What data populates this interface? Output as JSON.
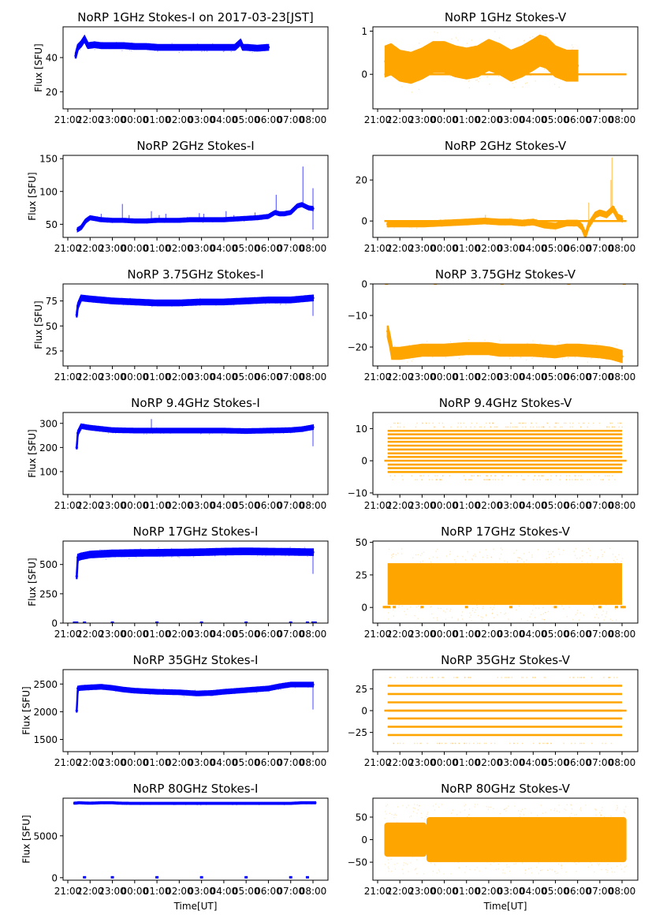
{
  "figure": {
    "xlabel": "Time[UT]",
    "ylabel": "Flux [SFU]",
    "colors": {
      "stokes_i": "#0000ff",
      "stokes_v": "#ffa500"
    }
  },
  "chart_data": [
    {
      "id": "i1",
      "type": "scatter",
      "column": "left",
      "row": 0,
      "title": "NoRP 1GHz Stokes-I on 2017-03-23[JST]",
      "xlabel": "",
      "ylabel": "Flux [SFU]",
      "ylim": [
        10,
        58
      ],
      "yticks": [
        20,
        40
      ],
      "xticks": [
        "21:00",
        "22:00",
        "23:00",
        "00:00",
        "01:00",
        "02:00",
        "03:00",
        "04:00",
        "05:00",
        "06:00",
        "07:00",
        "08:00"
      ],
      "color": "#0000ff",
      "series": [
        {
          "name": "Stokes-I",
          "x": [
            21.35,
            21.45,
            21.6,
            21.75,
            21.9,
            22.2,
            22.5,
            23.0,
            23.5,
            24.0,
            24.5,
            25.0,
            25.5,
            26.0,
            26.5,
            27.0,
            27.5,
            28.0,
            28.5,
            28.75,
            28.85,
            29.0,
            29.5,
            30.0
          ],
          "y": [
            41,
            46,
            48,
            51,
            47,
            47.5,
            47,
            47,
            47,
            46.5,
            46.5,
            46,
            46,
            46,
            46,
            46,
            46,
            46,
            46,
            49,
            46,
            46,
            45.5,
            46
          ],
          "spread": 1.5
        }
      ],
      "zero_points": []
    },
    {
      "id": "v1",
      "type": "scatter",
      "column": "right",
      "row": 0,
      "title": "NoRP 1GHz Stokes-V",
      "xlabel": "",
      "ylabel": "",
      "ylim": [
        -0.8,
        1.1
      ],
      "yticks": [
        0,
        1
      ],
      "xticks": [
        "21:00",
        "22:00",
        "23:00",
        "00:00",
        "01:00",
        "02:00",
        "03:00",
        "04:00",
        "05:00",
        "06:00",
        "07:00",
        "08:00"
      ],
      "color": "#ffa500",
      "series": [
        {
          "name": "Stokes-V",
          "x": [
            21.35,
            21.6,
            22.0,
            22.5,
            23.0,
            23.5,
            24.0,
            24.5,
            25.0,
            25.5,
            26.0,
            26.5,
            27.0,
            27.5,
            28.0,
            28.3,
            28.6,
            29.0,
            29.5,
            30.0
          ],
          "y": [
            0.3,
            0.35,
            0.2,
            0.15,
            0.25,
            0.4,
            0.4,
            0.3,
            0.25,
            0.3,
            0.45,
            0.35,
            0.2,
            0.3,
            0.45,
            0.55,
            0.5,
            0.3,
            0.2,
            0.2
          ],
          "spread": 0.35
        }
      ],
      "zero_line": [
        21.3,
        32.2
      ]
    },
    {
      "id": "i2",
      "type": "scatter",
      "column": "left",
      "row": 1,
      "title": "NoRP 2GHz Stokes-I",
      "xlabel": "",
      "ylabel": "Flux [SFU]",
      "ylim": [
        30,
        155
      ],
      "yticks": [
        50,
        100,
        150
      ],
      "xticks": [
        "21:00",
        "22:00",
        "23:00",
        "00:00",
        "01:00",
        "02:00",
        "03:00",
        "04:00",
        "05:00",
        "06:00",
        "07:00",
        "08:00"
      ],
      "color": "#0000ff",
      "series": [
        {
          "name": "Stokes-I",
          "x": [
            21.45,
            21.6,
            21.8,
            22.0,
            22.5,
            23.0,
            23.5,
            24.0,
            24.5,
            25.0,
            25.5,
            26.0,
            26.5,
            27.0,
            27.5,
            28.0,
            28.5,
            29.0,
            29.5,
            30.0,
            30.3,
            30.5,
            30.7,
            31.0,
            31.3,
            31.5,
            31.8,
            32.0
          ],
          "y": [
            42,
            45,
            55,
            60,
            57,
            56,
            56,
            55,
            55,
            56,
            56,
            56,
            57,
            57,
            57,
            57,
            58,
            59,
            60,
            62,
            68,
            66,
            66,
            68,
            78,
            80,
            75,
            74
          ],
          "spread": 2.5
        }
      ],
      "spikes": [
        [
          22.5,
          66
        ],
        [
          23.45,
          81
        ],
        [
          23.75,
          64
        ],
        [
          24.75,
          70
        ],
        [
          25.1,
          64
        ],
        [
          25.4,
          66
        ],
        [
          26.9,
          67
        ],
        [
          27.1,
          66
        ],
        [
          28.1,
          70
        ],
        [
          28.45,
          64
        ],
        [
          29.4,
          68
        ],
        [
          30.35,
          95
        ],
        [
          31.55,
          138
        ],
        [
          32.0,
          105
        ],
        [
          32.0,
          42
        ]
      ]
    },
    {
      "id": "v2",
      "type": "scatter",
      "column": "right",
      "row": 1,
      "title": "NoRP 2GHz Stokes-V",
      "xlabel": "",
      "ylabel": "",
      "ylim": [
        -8,
        32
      ],
      "yticks": [
        0,
        20
      ],
      "xticks": [
        "21:00",
        "22:00",
        "23:00",
        "00:00",
        "01:00",
        "02:00",
        "03:00",
        "04:00",
        "05:00",
        "06:00",
        "07:00",
        "08:00"
      ],
      "color": "#ffa500",
      "series": [
        {
          "name": "Stokes-V",
          "x": [
            21.45,
            22.0,
            23.0,
            24.0,
            25.0,
            25.8,
            26.5,
            27.0,
            27.5,
            28.0,
            28.5,
            29.0,
            29.5,
            30.0,
            30.2,
            30.35,
            30.5,
            30.8,
            31.0,
            31.3,
            31.5,
            31.6,
            31.8,
            32.0
          ],
          "y": [
            -1.5,
            -1.5,
            -1.5,
            -1,
            -0.5,
            0,
            -0.5,
            -0.5,
            -1,
            -0.5,
            -2,
            -2.5,
            -1,
            -1,
            -3,
            -7,
            -2,
            3,
            4,
            3,
            5,
            6,
            2,
            1
          ],
          "spread": 1.2
        }
      ],
      "zero_line": [
        21.3,
        32.2
      ],
      "spikes": [
        [
          25.85,
          3
        ],
        [
          31.55,
          31
        ],
        [
          31.5,
          20
        ],
        [
          30.5,
          9
        ]
      ]
    },
    {
      "id": "i3",
      "type": "scatter",
      "column": "left",
      "row": 2,
      "title": "NoRP 3.75GHz Stokes-I",
      "xlabel": "",
      "ylabel": "Flux [SFU]",
      "ylim": [
        10,
        92
      ],
      "yticks": [
        25,
        50,
        75
      ],
      "xticks": [
        "21:00",
        "22:00",
        "23:00",
        "00:00",
        "01:00",
        "02:00",
        "03:00",
        "04:00",
        "05:00",
        "06:00",
        "07:00",
        "08:00"
      ],
      "color": "#0000ff",
      "series": [
        {
          "name": "Stokes-I",
          "x": [
            21.4,
            21.45,
            21.6,
            22.0,
            22.5,
            23.0,
            24.0,
            25.0,
            26.0,
            27.0,
            28.0,
            29.0,
            30.0,
            30.5,
            31.0,
            31.5,
            32.0
          ],
          "y": [
            61,
            70,
            78,
            77,
            76,
            75,
            74,
            73,
            73,
            74,
            74,
            75,
            76,
            76,
            76,
            77,
            78
          ],
          "spread": 2.5
        }
      ],
      "spikes": [
        [
          32.0,
          60
        ]
      ]
    },
    {
      "id": "v3",
      "type": "scatter",
      "column": "right",
      "row": 2,
      "title": "NoRP 3.75GHz Stokes-V",
      "xlabel": "",
      "ylabel": "",
      "ylim": [
        -26,
        0
      ],
      "yticks": [
        -20,
        -10,
        0
      ],
      "xticks": [
        "21:00",
        "22:00",
        "23:00",
        "00:00",
        "01:00",
        "02:00",
        "03:00",
        "04:00",
        "05:00",
        "06:00",
        "07:00",
        "08:00"
      ],
      "color": "#ffa500",
      "series": [
        {
          "name": "Stokes-V",
          "x": [
            21.45,
            21.55,
            21.65,
            22.0,
            23.0,
            23.5,
            24.0,
            25.0,
            26.0,
            26.5,
            27.0,
            28.0,
            29.0,
            29.5,
            30.0,
            31.0,
            31.5,
            32.0
          ],
          "y": [
            -15,
            -18,
            -22,
            -22,
            -21,
            -21,
            -21,
            -20.5,
            -20.5,
            -21,
            -21,
            -21,
            -21.5,
            -21,
            -21,
            -21.5,
            -22,
            -23
          ],
          "spread": 1.8
        }
      ],
      "zero_points": [
        21.4,
        23.6,
        26.6,
        29.6,
        32.1
      ]
    },
    {
      "id": "i4",
      "type": "scatter",
      "column": "left",
      "row": 3,
      "title": "NoRP 9.4GHz Stokes-I",
      "xlabel": "",
      "ylabel": "Flux [SFU]",
      "ylim": [
        5,
        345
      ],
      "yticks": [
        100,
        200,
        300
      ],
      "xticks": [
        "21:00",
        "22:00",
        "23:00",
        "00:00",
        "01:00",
        "02:00",
        "03:00",
        "04:00",
        "05:00",
        "06:00",
        "07:00",
        "08:00"
      ],
      "color": "#0000ff",
      "series": [
        {
          "name": "Stokes-I",
          "x": [
            21.4,
            21.45,
            21.6,
            22.0,
            23.0,
            24.0,
            25.0,
            26.0,
            27.0,
            28.0,
            29.0,
            30.0,
            31.0,
            31.5,
            32.0
          ],
          "y": [
            200,
            260,
            288,
            282,
            272,
            270,
            270,
            270,
            270,
            270,
            268,
            270,
            272,
            276,
            284
          ],
          "spread": 8
        }
      ],
      "spikes": [
        [
          24.75,
          318
        ],
        [
          32.0,
          205
        ]
      ]
    },
    {
      "id": "v4",
      "type": "scatter",
      "column": "right",
      "row": 3,
      "title": "NoRP 9.4GHz Stokes-V",
      "xlabel": "",
      "ylabel": "",
      "ylim": [
        -10.5,
        15
      ],
      "yticks": [
        -10,
        0,
        10
      ],
      "xticks": [
        "21:00",
        "22:00",
        "23:00",
        "00:00",
        "01:00",
        "02:00",
        "03:00",
        "04:00",
        "05:00",
        "06:00",
        "07:00",
        "08:00"
      ],
      "color": "#ffa500",
      "quantized_levels": [
        -5.9,
        -4.7,
        -3.5,
        -2.3,
        -1.2,
        1.2,
        2.3,
        3.5,
        4.7,
        5.9,
        7.0,
        8.2,
        9.3,
        10.5,
        11.7
      ],
      "dense_levels": [
        -3.5,
        -2.3,
        -1.2,
        1.2,
        2.3,
        3.5,
        4.7,
        5.9,
        7.0,
        8.2,
        9.3
      ],
      "data_range_x": [
        21.45,
        32.0
      ],
      "zero_line": [
        21.3,
        32.2
      ]
    },
    {
      "id": "i5",
      "type": "scatter",
      "column": "left",
      "row": 4,
      "title": "NoRP 17GHz Stokes-I",
      "xlabel": "",
      "ylabel": "Flux [SFU]",
      "ylim": [
        0,
        700
      ],
      "yticks": [
        0,
        250,
        500
      ],
      "xticks": [
        "21:00",
        "22:00",
        "23:00",
        "00:00",
        "01:00",
        "02:00",
        "03:00",
        "04:00",
        "05:00",
        "06:00",
        "07:00",
        "08:00"
      ],
      "color": "#0000ff",
      "series": [
        {
          "name": "Stokes-I",
          "x": [
            21.4,
            21.45,
            21.6,
            22.0,
            23.0,
            24.0,
            25.0,
            26.0,
            27.0,
            28.0,
            29.0,
            30.0,
            31.0,
            32.0
          ],
          "y": [
            400,
            560,
            570,
            585,
            595,
            598,
            600,
            602,
            605,
            610,
            612,
            610,
            608,
            605
          ],
          "spread": 25
        }
      ],
      "spikes": [
        [
          32.0,
          420
        ]
      ],
      "zero_points": [
        21.3,
        21.4,
        21.75,
        23.0,
        25.0,
        27.0,
        29.0,
        31.0,
        31.75,
        32.0,
        32.1
      ]
    },
    {
      "id": "v5",
      "type": "scatter",
      "column": "right",
      "row": 4,
      "title": "NoRP 17GHz Stokes-V",
      "xlabel": "",
      "ylabel": "",
      "ylim": [
        -12,
        51
      ],
      "yticks": [
        0,
        25,
        50
      ],
      "xticks": [
        "21:00",
        "22:00",
        "23:00",
        "00:00",
        "01:00",
        "02:00",
        "03:00",
        "04:00",
        "05:00",
        "06:00",
        "07:00",
        "08:00"
      ],
      "color": "#ffa500",
      "band": {
        "x": [
          21.45,
          32.0
        ],
        "y_low": 2,
        "y_high": 34,
        "outer_low": -10,
        "outer_high": 46
      },
      "zero_points": [
        21.3,
        21.4,
        21.5,
        21.75,
        23.0,
        25.0,
        27.0,
        29.0,
        31.0,
        31.75,
        32.0,
        32.1
      ]
    },
    {
      "id": "i6",
      "type": "scatter",
      "column": "left",
      "row": 5,
      "title": "NoRP 35GHz Stokes-I",
      "xlabel": "",
      "ylabel": "Flux [SFU]",
      "ylim": [
        1280,
        2760
      ],
      "yticks": [
        1500,
        2000,
        2500
      ],
      "xticks": [
        "21:00",
        "22:00",
        "23:00",
        "00:00",
        "01:00",
        "02:00",
        "03:00",
        "04:00",
        "05:00",
        "06:00",
        "07:00",
        "08:00"
      ],
      "color": "#0000ff",
      "series": [
        {
          "name": "Stokes-I",
          "x": [
            21.4,
            21.45,
            21.6,
            22.0,
            22.5,
            23.0,
            23.5,
            24.0,
            25.0,
            26.0,
            26.8,
            27.5,
            28.0,
            29.0,
            30.0,
            30.5,
            31.0,
            31.5,
            32.0
          ],
          "y": [
            2020,
            2420,
            2430,
            2440,
            2450,
            2430,
            2400,
            2380,
            2360,
            2350,
            2330,
            2340,
            2360,
            2390,
            2420,
            2460,
            2490,
            2490,
            2490
          ],
          "spread": 35
        }
      ],
      "spikes": [
        [
          32.0,
          2040
        ]
      ]
    },
    {
      "id": "v6",
      "type": "scatter",
      "column": "right",
      "row": 5,
      "title": "NoRP 35GHz Stokes-V",
      "xlabel": "",
      "ylabel": "",
      "ylim": [
        -47,
        47
      ],
      "yticks": [
        -25,
        0,
        25
      ],
      "xticks": [
        "21:00",
        "22:00",
        "23:00",
        "00:00",
        "01:00",
        "02:00",
        "03:00",
        "04:00",
        "05:00",
        "06:00",
        "07:00",
        "08:00"
      ],
      "color": "#ffa500",
      "quantized_levels": [
        -37.5,
        -28,
        -18.5,
        -9,
        0,
        9.5,
        19,
        28.5,
        38
      ],
      "dense_levels": [
        -28,
        -18.5,
        -9,
        0,
        9.5,
        19,
        28.5
      ],
      "data_range_x": [
        21.45,
        32.0
      ],
      "zero_line": [
        21.3,
        32.2
      ]
    },
    {
      "id": "i7",
      "type": "scatter",
      "column": "left",
      "row": 6,
      "title": "NoRP 80GHz Stokes-I",
      "xlabel": "Time[UT]",
      "ylabel": "Flux [SFU]",
      "ylim": [
        -300,
        9500
      ],
      "yticks": [
        0,
        5000
      ],
      "xticks": [
        "21:00",
        "22:00",
        "23:00",
        "00:00",
        "01:00",
        "02:00",
        "03:00",
        "04:00",
        "05:00",
        "06:00",
        "07:00",
        "08:00"
      ],
      "color": "#0000ff",
      "series": [
        {
          "name": "Stokes-I",
          "x": [
            21.3,
            21.5,
            22.0,
            22.5,
            23.0,
            23.3,
            24.0,
            25.0,
            26.0,
            27.0,
            28.0,
            29.0,
            30.0,
            31.0,
            31.5,
            32.1
          ],
          "y": [
            8900,
            8950,
            8900,
            8950,
            8950,
            8900,
            8880,
            8880,
            8880,
            8880,
            8880,
            8880,
            8880,
            8880,
            8950,
            8950
          ],
          "spread": 80
        }
      ],
      "zero_points": [
        21.75,
        23.0,
        25.0,
        27.0,
        29.0,
        31.0,
        31.75
      ]
    },
    {
      "id": "v7",
      "type": "scatter",
      "column": "right",
      "row": 6,
      "title": "NoRP 80GHz Stokes-V",
      "xlabel": "Time[UT]",
      "ylabel": "",
      "ylim": [
        -90,
        92
      ],
      "yticks": [
        -50,
        0,
        50
      ],
      "xticks": [
        "21:00",
        "22:00",
        "23:00",
        "00:00",
        "01:00",
        "02:00",
        "03:00",
        "04:00",
        "05:00",
        "06:00",
        "07:00",
        "08:00"
      ],
      "color": "#ffa500",
      "band_segments": [
        {
          "x": [
            21.3,
            23.2
          ],
          "y_low": -38,
          "y_high": 38
        },
        {
          "x": [
            23.2,
            32.2
          ],
          "y_low": -50,
          "y_high": 50
        }
      ],
      "outer_extent": [
        -75,
        80
      ]
    }
  ]
}
